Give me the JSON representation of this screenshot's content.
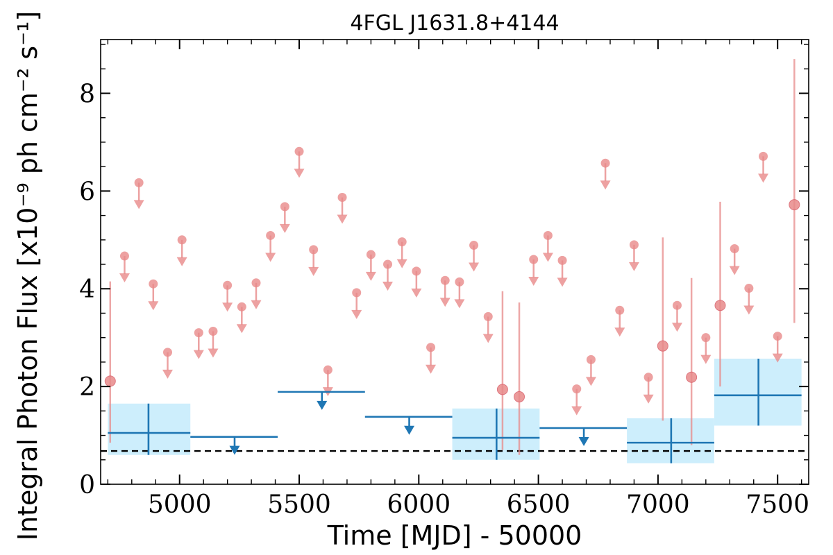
{
  "chart_data": {
    "type": "scatter",
    "title": "4FGL J1631.8+4144",
    "xlabel": "Time [MJD] - 50000",
    "ylabel": "Integral Photon Flux [x10⁻⁹ ph cm⁻² s⁻¹]",
    "xlim": [
      4670,
      7630
    ],
    "ylim": [
      0,
      9.1
    ],
    "xticks": [
      5000,
      5500,
      6000,
      6500,
      7000,
      7500
    ],
    "xtick_labels": [
      "5000",
      "5500",
      "6000",
      "6500",
      "7000",
      "7500"
    ],
    "yticks": [
      0,
      2,
      4,
      6,
      8
    ],
    "ytick_labels": [
      "0",
      "2",
      "4",
      "6",
      "8"
    ],
    "grid": false,
    "colors": {
      "fine_bins": "#e88a8a",
      "coarse_bins": "#1f77b4",
      "coarse_band": "#cdeefc",
      "reference_line": "#000000"
    },
    "reference_line": {
      "y": 0.68,
      "style": "dashed"
    },
    "series": [
      {
        "points": [
          {
            "x": 4710,
            "y": 2.11,
            "ylo": 0.85,
            "yhi": 4.15
          },
          {
            "x": 4770,
            "y": 4.67,
            "upper_limit": true
          },
          {
            "x": 4830,
            "y": 6.17,
            "upper_limit": true
          },
          {
            "x": 4890,
            "y": 4.1,
            "upper_limit": true
          },
          {
            "x": 4950,
            "y": 2.7,
            "upper_limit": true
          },
          {
            "x": 5010,
            "y": 5.0,
            "upper_limit": true
          },
          {
            "x": 5080,
            "y": 3.1,
            "upper_limit": true
          },
          {
            "x": 5140,
            "y": 3.13,
            "upper_limit": true
          },
          {
            "x": 5200,
            "y": 4.07,
            "upper_limit": true
          },
          {
            "x": 5260,
            "y": 3.63,
            "upper_limit": true
          },
          {
            "x": 5320,
            "y": 4.12,
            "upper_limit": true
          },
          {
            "x": 5380,
            "y": 5.09,
            "upper_limit": true
          },
          {
            "x": 5440,
            "y": 5.68,
            "upper_limit": true
          },
          {
            "x": 5500,
            "y": 6.81,
            "upper_limit": true
          },
          {
            "x": 5560,
            "y": 4.8,
            "upper_limit": true
          },
          {
            "x": 5620,
            "y": 2.34,
            "upper_limit": true
          },
          {
            "x": 5680,
            "y": 5.87,
            "upper_limit": true
          },
          {
            "x": 5740,
            "y": 3.92,
            "upper_limit": true
          },
          {
            "x": 5800,
            "y": 4.7,
            "upper_limit": true
          },
          {
            "x": 5870,
            "y": 4.5,
            "upper_limit": true
          },
          {
            "x": 5930,
            "y": 4.96,
            "upper_limit": true
          },
          {
            "x": 5990,
            "y": 4.36,
            "upper_limit": true
          },
          {
            "x": 6050,
            "y": 2.8,
            "upper_limit": true
          },
          {
            "x": 6110,
            "y": 4.17,
            "upper_limit": true
          },
          {
            "x": 6170,
            "y": 4.14,
            "upper_limit": true
          },
          {
            "x": 6230,
            "y": 4.89,
            "upper_limit": true
          },
          {
            "x": 6290,
            "y": 3.43,
            "upper_limit": true
          },
          {
            "x": 6350,
            "y": 1.94,
            "ylo": 0.7,
            "yhi": 3.95
          },
          {
            "x": 6420,
            "y": 1.79,
            "ylo": 0.6,
            "yhi": 3.72
          },
          {
            "x": 6480,
            "y": 4.6,
            "upper_limit": true
          },
          {
            "x": 6540,
            "y": 5.09,
            "upper_limit": true
          },
          {
            "x": 6600,
            "y": 4.58,
            "upper_limit": true
          },
          {
            "x": 6660,
            "y": 1.95,
            "upper_limit": true
          },
          {
            "x": 6720,
            "y": 2.55,
            "upper_limit": true
          },
          {
            "x": 6780,
            "y": 6.57,
            "upper_limit": true
          },
          {
            "x": 6840,
            "y": 3.56,
            "upper_limit": true
          },
          {
            "x": 6900,
            "y": 4.9,
            "upper_limit": true
          },
          {
            "x": 6960,
            "y": 2.19,
            "upper_limit": true
          },
          {
            "x": 7020,
            "y": 2.83,
            "ylo": 1.3,
            "yhi": 5.05
          },
          {
            "x": 7080,
            "y": 3.66,
            "upper_limit": true
          },
          {
            "x": 7140,
            "y": 2.19,
            "ylo": 0.8,
            "yhi": 4.22
          },
          {
            "x": 7200,
            "y": 3.0,
            "upper_limit": true
          },
          {
            "x": 7260,
            "y": 3.66,
            "ylo": 2.0,
            "yhi": 5.78
          },
          {
            "x": 7320,
            "y": 4.82,
            "upper_limit": true
          },
          {
            "x": 7380,
            "y": 4.01,
            "upper_limit": true
          },
          {
            "x": 7440,
            "y": 6.71,
            "upper_limit": true
          },
          {
            "x": 7500,
            "y": 3.03,
            "upper_limit": true
          },
          {
            "x": 7570,
            "y": 5.72,
            "ylo": 3.3,
            "yhi": 8.7
          }
        ]
      },
      {
        "points": [
          {
            "x": 4870,
            "xlo": 4700,
            "xhi": 5045,
            "y": 1.05,
            "ylo": 0.6,
            "yhi": 1.65
          },
          {
            "x": 5230,
            "xlo": 5045,
            "xhi": 5410,
            "y": 0.97,
            "upper_limit": true
          },
          {
            "x": 5595,
            "xlo": 5410,
            "xhi": 5775,
            "y": 1.89,
            "upper_limit": true
          },
          {
            "x": 5960,
            "xlo": 5775,
            "xhi": 6140,
            "y": 1.38,
            "upper_limit": true
          },
          {
            "x": 6325,
            "xlo": 6140,
            "xhi": 6505,
            "y": 0.95,
            "ylo": 0.5,
            "yhi": 1.55
          },
          {
            "x": 6690,
            "xlo": 6505,
            "xhi": 6870,
            "y": 1.15,
            "upper_limit": true
          },
          {
            "x": 7055,
            "xlo": 6870,
            "xhi": 7235,
            "y": 0.85,
            "ylo": 0.43,
            "yhi": 1.35
          },
          {
            "x": 7420,
            "xlo": 7235,
            "xhi": 7600,
            "y": 1.82,
            "ylo": 1.2,
            "yhi": 2.57
          }
        ]
      }
    ]
  }
}
